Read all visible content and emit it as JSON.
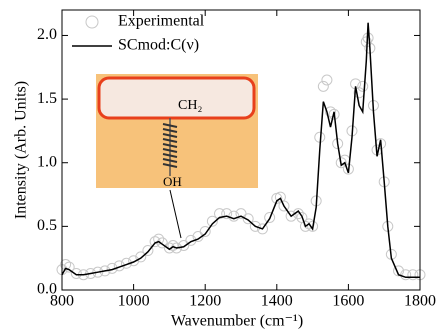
{
  "chart_data": {
    "type": "line",
    "xlabel": "Wavenumber (cm⁻¹)",
    "ylabel": "Intensity (Arb. Units)",
    "xlim": [
      800,
      1800
    ],
    "ylim": [
      0,
      2.2
    ],
    "xticks": [
      800,
      1000,
      1200,
      1400,
      1600,
      1800
    ],
    "yticks": [
      {
        "value": 0,
        "label": "0.0"
      },
      {
        "value": 0.5,
        "label": "0.5"
      },
      {
        "value": 1,
        "label": "1.0"
      },
      {
        "value": 1.5,
        "label": "1.5"
      },
      {
        "value": 2,
        "label": "2.0"
      }
    ],
    "legend": "upper left",
    "annotations": [
      "CH₂",
      "OH"
    ],
    "x": [
      800,
      810,
      820,
      840,
      860,
      880,
      900,
      920,
      940,
      960,
      980,
      1000,
      1020,
      1040,
      1060,
      1070,
      1080,
      1100,
      1110,
      1120,
      1140,
      1160,
      1180,
      1200,
      1220,
      1240,
      1260,
      1280,
      1300,
      1320,
      1340,
      1360,
      1380,
      1400,
      1410,
      1420,
      1440,
      1460,
      1470,
      1480,
      1490,
      1500,
      1510,
      1520,
      1530,
      1540,
      1550,
      1560,
      1570,
      1580,
      1590,
      1600,
      1610,
      1620,
      1630,
      1640,
      1650,
      1655,
      1660,
      1670,
      1680,
      1690,
      1700,
      1710,
      1720,
      1740,
      1760,
      1780,
      1800
    ],
    "series": [
      {
        "name": "Experimental",
        "color": "#c8c8c8",
        "marker": "circle",
        "values": [
          0.16,
          0.2,
          0.18,
          0.13,
          0.12,
          0.13,
          0.14,
          0.15,
          0.17,
          0.19,
          0.21,
          0.23,
          0.26,
          0.31,
          0.38,
          0.4,
          0.37,
          0.33,
          0.35,
          0.33,
          0.35,
          0.39,
          0.42,
          0.46,
          0.54,
          0.6,
          0.6,
          0.58,
          0.6,
          0.56,
          0.5,
          0.48,
          0.57,
          0.72,
          0.73,
          0.66,
          0.58,
          0.6,
          0.57,
          0.5,
          0.52,
          0.5,
          0.7,
          1.2,
          1.6,
          1.65,
          1.4,
          1.38,
          1.15,
          1.0,
          1.02,
          0.95,
          1.25,
          1.62,
          1.55,
          1.6,
          1.95,
          1.98,
          1.9,
          1.45,
          1.1,
          1.15,
          0.85,
          0.5,
          0.28,
          0.15,
          0.12,
          0.12,
          0.12
        ]
      },
      {
        "name": "SCmod:C(ν)",
        "color": "#000000",
        "marker": "line",
        "values": [
          0.12,
          0.17,
          0.16,
          0.12,
          0.12,
          0.13,
          0.14,
          0.15,
          0.16,
          0.18,
          0.2,
          0.22,
          0.25,
          0.3,
          0.37,
          0.38,
          0.36,
          0.32,
          0.34,
          0.33,
          0.34,
          0.38,
          0.4,
          0.44,
          0.52,
          0.57,
          0.58,
          0.56,
          0.58,
          0.55,
          0.5,
          0.48,
          0.56,
          0.7,
          0.72,
          0.66,
          0.58,
          0.62,
          0.58,
          0.5,
          0.52,
          0.48,
          0.65,
          1.1,
          1.48,
          1.4,
          1.28,
          1.4,
          1.15,
          0.98,
          1.0,
          0.92,
          1.2,
          1.6,
          1.45,
          1.4,
          1.8,
          2.1,
          1.9,
          1.4,
          1.05,
          1.18,
          0.85,
          0.5,
          0.25,
          0.12,
          0.1,
          0.1,
          0.1
        ]
      }
    ]
  }
}
